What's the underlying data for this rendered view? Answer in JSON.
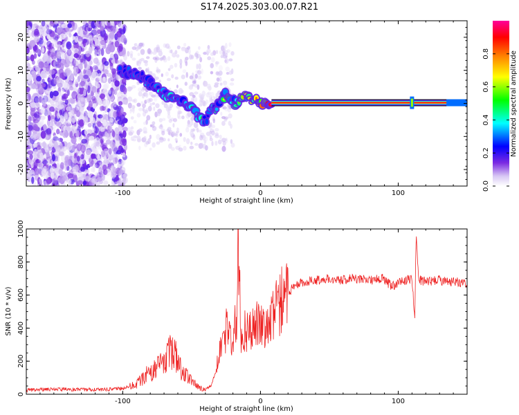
{
  "title": "S174.2025.303.00.07.R21",
  "colors": {
    "snr_line": "#ee2222",
    "spectrogram_low": "#7b2be2",
    "carrier": "#e8112d"
  },
  "chart_data": [
    {
      "type": "heatmap",
      "title": "S174.2025.303.00.07.R21",
      "xlabel": "Height of straight line (km)",
      "ylabel": "Frequency (Hz)",
      "xlim": [
        -170,
        150
      ],
      "ylim": [
        -25,
        25
      ],
      "xticks": [
        -100,
        0,
        100
      ],
      "yticks": [
        -20,
        -10,
        0,
        10,
        20
      ],
      "xtick_labels": [
        "-100",
        "0",
        "100"
      ],
      "ytick_labels": [
        "-20",
        "-10",
        "0",
        "10",
        "20"
      ],
      "grid": false,
      "colorbar": {
        "label": "Normalized spectral amplitude",
        "range": [
          0,
          1
        ],
        "ticks": [
          0.0,
          0.2,
          0.4,
          0.6,
          0.8
        ],
        "tick_labels": [
          "0.0",
          "0.2",
          "0.4",
          "0.6",
          "0.8"
        ],
        "stops": [
          "#ffffff",
          "#7b2be2",
          "#0000ff",
          "#00ffff",
          "#00ff00",
          "#ffff00",
          "#ff8800",
          "#ff0000",
          "#ff0099"
        ]
      },
      "carrier_track": {
        "x": [
          -100,
          -90,
          -80,
          -70,
          -60,
          -50,
          -45,
          -40,
          -35,
          -30,
          -25,
          -20,
          -15,
          -10,
          -5,
          0,
          10,
          50,
          100,
          150
        ],
        "freq": [
          10,
          9,
          6,
          3,
          1,
          -2,
          -4,
          -5,
          -2,
          0,
          3,
          0,
          1,
          2,
          1,
          0.3,
          0.2,
          0.2,
          0.2,
          0.2
        ],
        "amplitude": [
          0.3,
          0.3,
          0.35,
          0.4,
          0.35,
          0.35,
          0.4,
          0.35,
          0.4,
          0.45,
          0.5,
          0.5,
          0.55,
          0.6,
          0.7,
          0.8,
          0.95,
          1.0,
          1.0,
          0.9
        ]
      }
    },
    {
      "type": "line",
      "xlabel": "Height of straight line (km)",
      "ylabel": "SNR (10 * v/v)",
      "xlim": [
        -170,
        150
      ],
      "ylim": [
        0,
        1000
      ],
      "xticks": [
        -100,
        0,
        100
      ],
      "yticks": [
        0,
        200,
        400,
        600,
        800,
        1000
      ],
      "xtick_labels": [
        "-100",
        "0",
        "100"
      ],
      "ytick_labels": [
        "0",
        "200",
        "400",
        "600",
        "800",
        "1000"
      ],
      "grid": false,
      "series": [
        {
          "name": "SNR",
          "x": [
            -170,
            -150,
            -130,
            -110,
            -100,
            -90,
            -85,
            -80,
            -75,
            -70,
            -66,
            -62,
            -58,
            -55,
            -50,
            -45,
            -40,
            -36,
            -32,
            -28,
            -24,
            -20,
            -17,
            -16,
            -14,
            -12,
            -10,
            -5,
            0,
            5,
            10,
            15,
            20,
            25,
            30,
            40,
            50,
            60,
            70,
            80,
            90,
            95,
            100,
            105,
            110,
            112,
            113,
            115,
            120,
            130,
            140,
            150
          ],
          "y": [
            25,
            30,
            28,
            30,
            35,
            60,
            100,
            140,
            160,
            200,
            250,
            240,
            150,
            120,
            90,
            40,
            30,
            50,
            150,
            300,
            420,
            350,
            500,
            1000,
            280,
            400,
            360,
            450,
            400,
            380,
            480,
            580,
            620,
            650,
            680,
            690,
            700,
            690,
            700,
            690,
            700,
            650,
            680,
            690,
            700,
            460,
            960,
            690,
            680,
            690,
            680,
            670
          ]
        }
      ]
    }
  ]
}
